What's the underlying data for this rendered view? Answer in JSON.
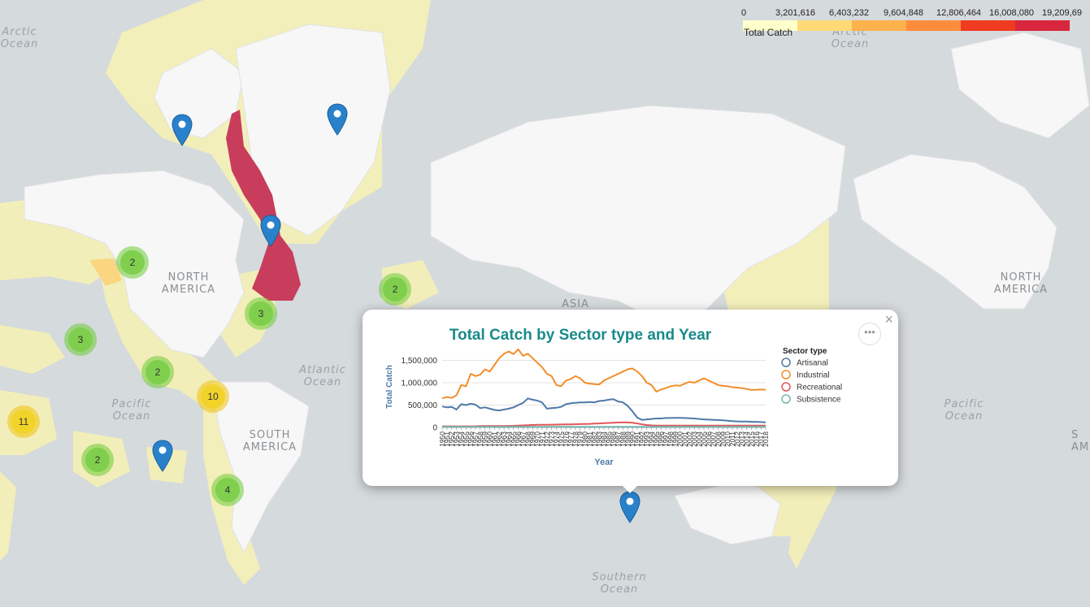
{
  "map": {
    "ocean_labels": [
      {
        "id": "arctic-ocean-left",
        "line1": "Arctic",
        "line2": "Ocean"
      },
      {
        "id": "arctic-ocean-right",
        "line1": "Arctic",
        "line2": "Ocean"
      },
      {
        "id": "atlantic-ocean",
        "line1": "Atlantic",
        "line2": "Ocean"
      },
      {
        "id": "pacific-ocean-left",
        "line1": "Pacific",
        "line2": "Ocean"
      },
      {
        "id": "pacific-ocean-right",
        "line1": "Pacific",
        "line2": "Ocean"
      },
      {
        "id": "southern-ocean",
        "line1": "Southern",
        "line2": "Ocean"
      }
    ],
    "continent_labels": [
      {
        "id": "north-america-left",
        "line1": "NORTH",
        "line2": "AMERICA"
      },
      {
        "id": "north-america-right",
        "line1": "NORTH",
        "line2": "AMERICA"
      },
      {
        "id": "south-america",
        "line1": "SOUTH",
        "line2": "AMERICA"
      },
      {
        "id": "asia",
        "line1": "ASIA",
        "line2": ""
      },
      {
        "id": "south-america-edge",
        "line1": "S",
        "line2": "AM"
      }
    ],
    "clusters": [
      {
        "id": "cluster-1",
        "count": "2",
        "color": "green"
      },
      {
        "id": "cluster-2",
        "count": "3",
        "color": "green"
      },
      {
        "id": "cluster-3",
        "count": "2",
        "color": "green"
      },
      {
        "id": "cluster-4",
        "count": "3",
        "color": "green"
      },
      {
        "id": "cluster-5",
        "count": "2",
        "color": "green"
      },
      {
        "id": "cluster-6",
        "count": "10",
        "color": "yellow"
      },
      {
        "id": "cluster-7",
        "count": "11",
        "color": "yellow"
      },
      {
        "id": "cluster-8",
        "count": "2",
        "color": "green"
      },
      {
        "id": "cluster-9",
        "count": "4",
        "color": "green"
      }
    ],
    "pin_color": "#2a81cb"
  },
  "legend": {
    "title": "Total Catch",
    "ticks": [
      "0",
      "3,201,616",
      "6,403,232",
      "9,604,848",
      "12,806,464",
      "16,008,080",
      "19,209,69"
    ],
    "colors": [
      "#ffffcc",
      "#fed976",
      "#feb24c",
      "#fd8d3c",
      "#f03b20",
      "#d7263d"
    ]
  },
  "popup": {
    "close_label": "×",
    "menu_label": "•••"
  },
  "chart_data": {
    "type": "line",
    "title": "Total Catch by Sector type and Year",
    "xlabel": "Year",
    "ylabel": "Total Catch",
    "legend_title": "Sector type",
    "yticks": [
      "0",
      "500,000",
      "1,000,000",
      "1,500,000"
    ],
    "ylim": [
      0,
      1800000
    ],
    "x": [
      1950,
      1951,
      1952,
      1953,
      1954,
      1955,
      1956,
      1957,
      1958,
      1959,
      1960,
      1961,
      1962,
      1963,
      1964,
      1965,
      1966,
      1967,
      1968,
      1969,
      1970,
      1971,
      1972,
      1973,
      1974,
      1975,
      1976,
      1977,
      1978,
      1979,
      1980,
      1981,
      1982,
      1983,
      1984,
      1985,
      1986,
      1987,
      1988,
      1989,
      1990,
      1991,
      1992,
      1993,
      1994,
      1995,
      1996,
      1997,
      1998,
      1999,
      2000,
      2001,
      2002,
      2003,
      2004,
      2005,
      2006,
      2007,
      2008,
      2009,
      2010,
      2011,
      2012,
      2013,
      2014,
      2015,
      2016,
      2017,
      2018
    ],
    "series": [
      {
        "name": "Artisanal",
        "color": "#4e79a7",
        "values": [
          470000,
          450000,
          460000,
          400000,
          520000,
          500000,
          530000,
          510000,
          430000,
          450000,
          420000,
          390000,
          380000,
          400000,
          420000,
          450000,
          500000,
          550000,
          650000,
          620000,
          600000,
          560000,
          420000,
          430000,
          440000,
          460000,
          520000,
          540000,
          550000,
          560000,
          560000,
          570000,
          560000,
          590000,
          600000,
          620000,
          630000,
          580000,
          560000,
          480000,
          360000,
          220000,
          170000,
          180000,
          190000,
          200000,
          200000,
          210000,
          210000,
          215000,
          215000,
          210000,
          205000,
          200000,
          190000,
          180000,
          175000,
          170000,
          165000,
          160000,
          150000,
          140000,
          135000,
          130000,
          130000,
          125000,
          125000,
          120000,
          115000
        ]
      },
      {
        "name": "Industrial",
        "color": "#f28e2b",
        "values": [
          650000,
          680000,
          660000,
          720000,
          950000,
          920000,
          1200000,
          1150000,
          1180000,
          1300000,
          1250000,
          1400000,
          1550000,
          1650000,
          1700000,
          1640000,
          1750000,
          1600000,
          1650000,
          1550000,
          1450000,
          1350000,
          1200000,
          1150000,
          950000,
          920000,
          1050000,
          1080000,
          1150000,
          1100000,
          1000000,
          980000,
          970000,
          960000,
          1050000,
          1100000,
          1150000,
          1200000,
          1250000,
          1300000,
          1320000,
          1250000,
          1150000,
          1000000,
          950000,
          800000,
          850000,
          880000,
          920000,
          940000,
          930000,
          980000,
          1020000,
          1000000,
          1050000,
          1100000,
          1050000,
          1000000,
          950000,
          930000,
          920000,
          900000,
          890000,
          880000,
          860000,
          840000,
          840000,
          850000,
          840000
        ]
      },
      {
        "name": "Recreational",
        "color": "#e15759",
        "values": [
          25000,
          25000,
          25000,
          25000,
          25000,
          25000,
          25000,
          25000,
          30000,
          30000,
          30000,
          30000,
          30000,
          30000,
          35000,
          35000,
          40000,
          45000,
          50000,
          55000,
          60000,
          60000,
          60000,
          62000,
          63000,
          65000,
          67000,
          70000,
          72000,
          75000,
          78000,
          80000,
          85000,
          90000,
          95000,
          100000,
          105000,
          110000,
          112000,
          110000,
          105000,
          90000,
          70000,
          55000,
          45000,
          40000,
          40000,
          40000,
          40000,
          40000,
          40000,
          40000,
          40000,
          40000,
          40000,
          40000,
          40000,
          40000,
          40000,
          40000,
          40000,
          40000,
          40000,
          40000,
          40000,
          40000,
          40000,
          40000,
          40000
        ]
      },
      {
        "name": "Subsistence",
        "color": "#76b7b2",
        "values": [
          15000,
          15000,
          15000,
          15000,
          15000,
          15000,
          15000,
          15000,
          15000,
          15000,
          15000,
          15000,
          15000,
          15000,
          15000,
          15000,
          15000,
          15000,
          15000,
          15000,
          15000,
          15000,
          15000,
          15000,
          15000,
          15000,
          15000,
          15000,
          15000,
          15000,
          15000,
          15000,
          15000,
          15000,
          15000,
          15000,
          15000,
          15000,
          15000,
          15000,
          15000,
          15000,
          15000,
          15000,
          15000,
          15000,
          15000,
          15000,
          15000,
          15000,
          15000,
          15000,
          15000,
          15000,
          15000,
          15000,
          15000,
          15000,
          15000,
          15000,
          15000,
          15000,
          15000,
          15000,
          15000,
          15000,
          15000,
          15000,
          15000
        ]
      }
    ]
  }
}
